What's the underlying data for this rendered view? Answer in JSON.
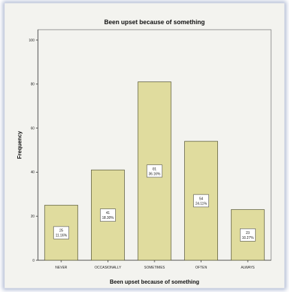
{
  "chart_data": {
    "type": "bar",
    "title": "Been upset because of something",
    "xlabel": "Been upset because of something",
    "ylabel": "Frequency",
    "categories": [
      "NEVER",
      "OCCASIONALLY",
      "SOMETIMES",
      "OFTEN",
      "ALWAYS"
    ],
    "values": [
      25,
      41,
      81,
      54,
      23
    ],
    "data_labels": [
      [
        "25",
        "11.16%"
      ],
      [
        "41",
        "18.30%"
      ],
      [
        "81",
        "36.16%"
      ],
      [
        "54",
        "24.11%"
      ],
      [
        "23",
        "10.27%"
      ]
    ],
    "ylim": [
      0,
      100
    ],
    "yticks": [
      0,
      20,
      40,
      60,
      80,
      100
    ],
    "grid": false,
    "legend": "none",
    "bar_color": "#e0dc9e",
    "bar_edge_color": "#5a5a3a",
    "plot_background": "#f3f3ef",
    "frame_glow_color": "#aeb9d3"
  }
}
